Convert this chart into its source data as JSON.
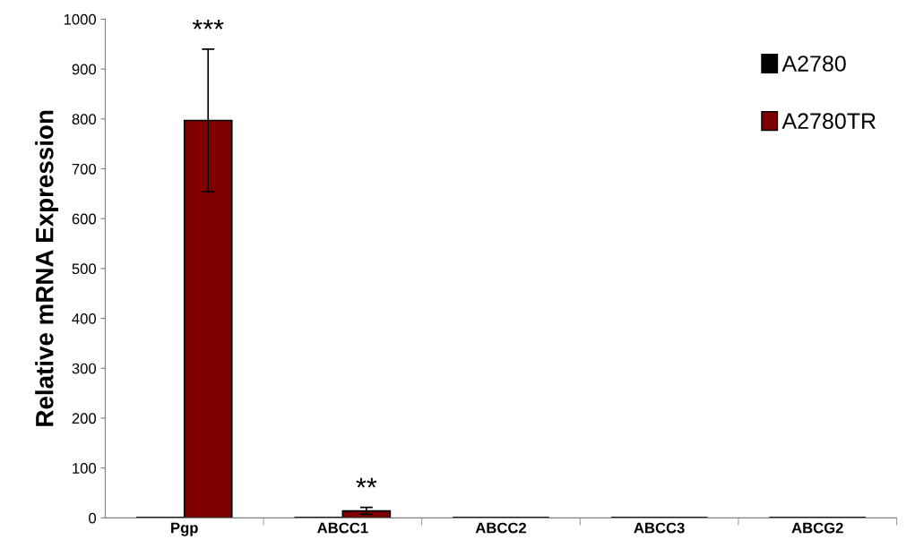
{
  "chart_data": {
    "type": "bar",
    "ylabel": "Relative mRNA Expression",
    "categories": [
      "Pgp",
      "ABCC1",
      "ABCC2",
      "ABCC3",
      "ABCG2"
    ],
    "series": [
      {
        "name": "A2780",
        "color": "#000000",
        "values": [
          1,
          1,
          1,
          1,
          1
        ]
      },
      {
        "name": "A2780TR",
        "color": "#800000",
        "values": [
          797,
          14,
          1,
          1,
          1
        ],
        "errors": [
          143,
          7,
          null,
          null,
          null
        ]
      }
    ],
    "ylim": [
      0,
      1000
    ],
    "yticks": [
      0,
      100,
      200,
      300,
      400,
      500,
      600,
      700,
      800,
      900,
      1000
    ],
    "annotations": [
      "***",
      "**"
    ],
    "grid": false,
    "legend": "top right"
  }
}
